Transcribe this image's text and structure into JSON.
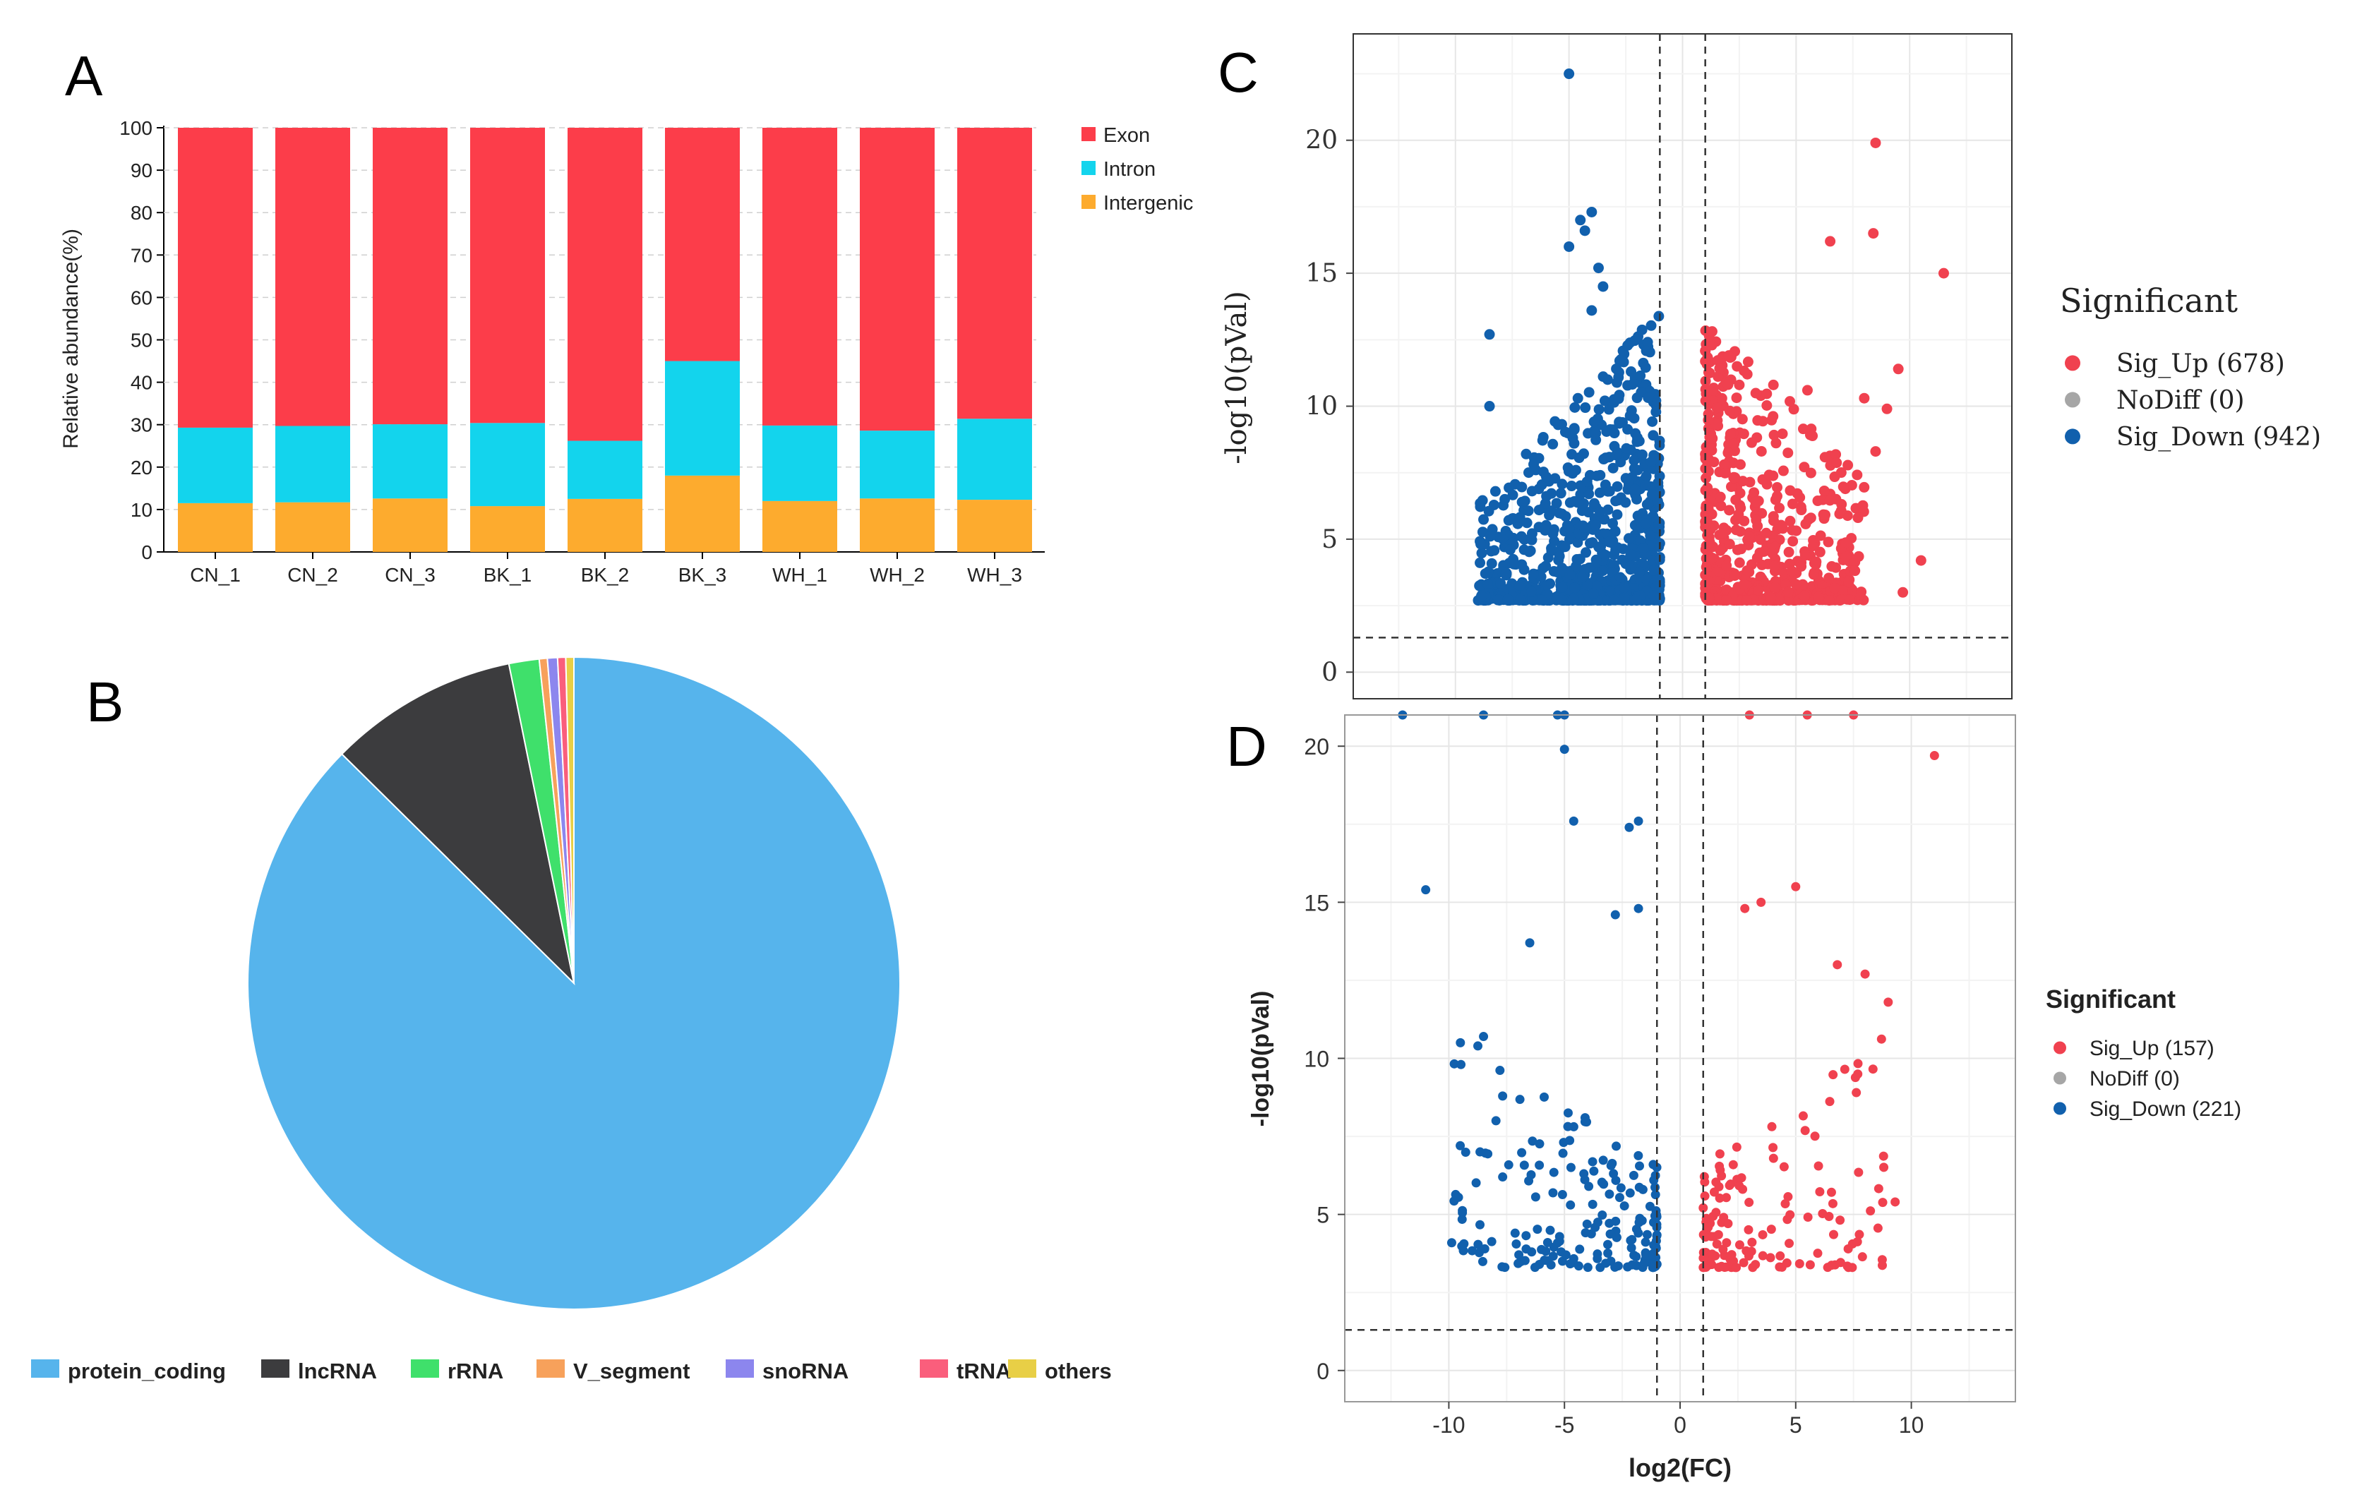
{
  "panels": {
    "a": "A",
    "b": "B",
    "c": "C",
    "d": "D"
  },
  "colors": {
    "exon": "#fc3d4a",
    "intron": "#13d4ed",
    "intergenic": "#fdab2e",
    "sig_up": "#f0414f",
    "nodiff": "#a6a6a6",
    "sig_down": "#1160ad",
    "protein_coding": "#56b4ec",
    "lncrna": "#3c3c3e",
    "rrna": "#3fe06b",
    "v_segment": "#f7a15b",
    "snorna": "#8c86ee",
    "trna": "#fa5e7c",
    "others": "#e8cf46"
  },
  "chart_data": [
    {
      "id": "A",
      "type": "bar",
      "stacked": true,
      "title": "",
      "xlabel": "",
      "ylabel": "Relative abundance(%)",
      "ylim": [
        0,
        100
      ],
      "yticks": [
        0,
        10,
        20,
        30,
        40,
        50,
        60,
        70,
        80,
        90,
        100
      ],
      "grid": false,
      "legend_position": "right",
      "categories": [
        "CN_1",
        "CN_2",
        "CN_3",
        "BK_1",
        "BK_2",
        "BK_3",
        "WH_1",
        "WH_2",
        "WH_3"
      ],
      "series": [
        {
          "name": "Intergenic",
          "color_key": "intergenic",
          "values": [
            11.5,
            11.7,
            12.6,
            10.8,
            12.5,
            18.0,
            12.0,
            12.6,
            12.3
          ]
        },
        {
          "name": "Intron",
          "color_key": "intron",
          "values": [
            17.8,
            18.0,
            17.5,
            19.6,
            13.7,
            27.0,
            17.8,
            16.0,
            19.1
          ]
        },
        {
          "name": "Exon",
          "color_key": "exon",
          "values": [
            70.7,
            70.3,
            69.9,
            69.6,
            73.8,
            55.0,
            70.2,
            71.4,
            68.6
          ]
        }
      ],
      "legend": [
        "Exon",
        "Intron",
        "Intergenic"
      ]
    },
    {
      "id": "B",
      "type": "pie",
      "title": "",
      "legend_position": "bottom",
      "slices": [
        {
          "label": "protein_coding",
          "value": 87.4,
          "color_key": "protein_coding"
        },
        {
          "label": "lncRNA",
          "value": 9.4,
          "color_key": "lncrna"
        },
        {
          "label": "rRNA",
          "value": 1.5,
          "color_key": "rrna"
        },
        {
          "label": "V_segment",
          "value": 0.4,
          "color_key": "v_segment"
        },
        {
          "label": "snoRNA",
          "value": 0.5,
          "color_key": "snorna"
        },
        {
          "label": "tRNA",
          "value": 0.4,
          "color_key": "trna"
        },
        {
          "label": "others",
          "value": 0.4,
          "color_key": "others"
        }
      ]
    },
    {
      "id": "C",
      "type": "scatter",
      "title": "",
      "xlabel": "",
      "ylabel": "-log10(pVal)",
      "xlim": [
        -14.5,
        14.5
      ],
      "ylim": [
        -1,
        24
      ],
      "yticks": [
        0,
        5,
        10,
        15,
        20
      ],
      "xticks": [],
      "grid": true,
      "thresholds": {
        "log2fc": [
          -1,
          1
        ],
        "neg_log10_p": 1.3
      },
      "legend_title": "Significant",
      "legend_position": "right",
      "legend": [
        {
          "label": "Sig_Up (678)",
          "color_key": "sig_up"
        },
        {
          "label": "NoDiff (0)",
          "color_key": "nodiff"
        },
        {
          "label": "Sig_Down (942)",
          "color_key": "sig_down"
        }
      ],
      "counts": {
        "up": 678,
        "nodiff": 0,
        "down": 942
      },
      "highlight_points": {
        "down": [
          [
            -5.0,
            22.5
          ],
          [
            -4.0,
            17.3
          ],
          [
            -4.5,
            17.0
          ],
          [
            -4.3,
            16.6
          ],
          [
            -5.0,
            16.0
          ],
          [
            -3.7,
            15.2
          ],
          [
            -3.5,
            14.5
          ],
          [
            -8.5,
            12.7
          ],
          [
            -4.0,
            13.6
          ],
          [
            -8.5,
            10.0
          ]
        ],
        "up": [
          [
            8.5,
            19.9
          ],
          [
            8.4,
            16.5
          ],
          [
            6.5,
            16.2
          ],
          [
            11.5,
            15.0
          ],
          [
            9.5,
            11.4
          ],
          [
            8.0,
            10.3
          ],
          [
            9.0,
            9.9
          ],
          [
            8.5,
            8.3
          ],
          [
            10.5,
            4.2
          ],
          [
            9.7,
            3.0
          ],
          [
            4.0,
            10.8
          ],
          [
            5.5,
            10.6
          ],
          [
            2.5,
            10.8
          ]
        ]
      },
      "bulk": {
        "down": {
          "n": 800,
          "x_range": [
            -9,
            -1
          ],
          "y_floor": 2.7
        },
        "up": {
          "n": 580,
          "x_range": [
            1,
            8
          ],
          "y_floor": 2.7
        }
      }
    },
    {
      "id": "D",
      "type": "scatter",
      "title": "",
      "xlabel": "log2(FC)",
      "ylabel": "-log10(pVal)",
      "xlim": [
        -14.5,
        14.5
      ],
      "ylim": [
        -1,
        21
      ],
      "xticks": [
        -10,
        -5,
        0,
        5,
        10
      ],
      "yticks": [
        0,
        5,
        10,
        15,
        20
      ],
      "grid": true,
      "thresholds": {
        "log2fc": [
          -1,
          1
        ],
        "neg_log10_p": 1.3
      },
      "legend_title": "Significant",
      "legend_position": "right",
      "legend": [
        {
          "label": "Sig_Up (157)",
          "color_key": "sig_up"
        },
        {
          "label": "NoDiff (0)",
          "color_key": "nodiff"
        },
        {
          "label": "Sig_Down (221)",
          "color_key": "sig_down"
        }
      ],
      "counts": {
        "up": 157,
        "nodiff": 0,
        "down": 221
      },
      "highlight_points": {
        "down": [
          [
            -12.0,
            21.0
          ],
          [
            -8.5,
            21.0
          ],
          [
            -5.0,
            21.0
          ],
          [
            -5.3,
            21.0
          ],
          [
            -5.0,
            19.9
          ],
          [
            -11.0,
            15.4
          ],
          [
            -4.6,
            17.6
          ],
          [
            -2.2,
            17.4
          ],
          [
            -1.8,
            17.6
          ],
          [
            -6.5,
            13.7
          ],
          [
            -2.8,
            14.6
          ],
          [
            -1.8,
            14.8
          ],
          [
            -9.5,
            10.5
          ],
          [
            -8.5,
            10.7
          ]
        ],
        "up": [
          [
            3.0,
            21.0
          ],
          [
            5.5,
            21.0
          ],
          [
            7.5,
            21.0
          ],
          [
            11.0,
            19.7
          ],
          [
            5.0,
            15.5
          ],
          [
            3.5,
            15.0
          ],
          [
            2.8,
            14.8
          ],
          [
            6.8,
            13.0
          ],
          [
            8.0,
            12.7
          ],
          [
            9.0,
            11.8
          ],
          [
            9.3,
            5.4
          ]
        ]
      },
      "bulk": {
        "down": {
          "n": 190,
          "x_range": [
            -10,
            -1
          ],
          "y_floor": 3.3
        },
        "up": {
          "n": 140,
          "x_range": [
            1,
            9
          ],
          "y_floor": 3.3
        }
      }
    }
  ]
}
